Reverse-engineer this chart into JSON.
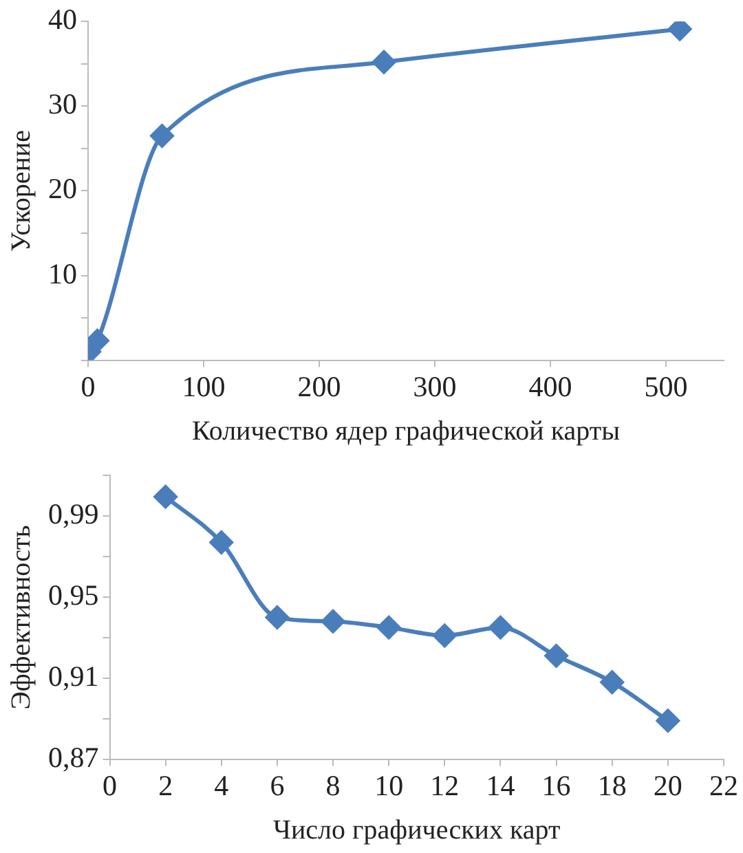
{
  "chart_data": [
    {
      "type": "line",
      "xlabel": "Количество ядер графической карты",
      "ylabel": "Ускорение",
      "marker": "diamond",
      "x": [
        1,
        8,
        64,
        256,
        512
      ],
      "series": [
        {
          "color": "#4a7ebb",
          "values": [
            1,
            2.3,
            26.5,
            35.2,
            39.1
          ]
        }
      ],
      "xlim": [
        0,
        550
      ],
      "xticks": [
        0,
        100,
        200,
        300,
        400,
        500
      ],
      "ylim": [
        0,
        40
      ],
      "yticks": [
        {
          "value": 0,
          "label": null
        },
        {
          "value": 5,
          "label": null
        },
        10,
        {
          "value": 15,
          "label": null
        },
        20,
        {
          "value": 25,
          "label": null
        },
        30,
        {
          "value": 35,
          "label": null
        },
        40
      ]
    },
    {
      "type": "line",
      "xlabel": "Число графических карт",
      "ylabel": "Эффективность",
      "marker": "diamond",
      "x": [
        2,
        4,
        6,
        8,
        10,
        12,
        14,
        16,
        18,
        20
      ],
      "series": [
        {
          "color": "#4a7ebb",
          "values": [
            0.9995,
            0.977,
            0.94,
            0.938,
            0.935,
            0.931,
            0.935,
            0.921,
            0.908,
            0.889
          ]
        }
      ],
      "xlim": [
        0,
        22
      ],
      "xticks": [
        0,
        2,
        4,
        6,
        8,
        10,
        12,
        14,
        16,
        18,
        20,
        22
      ],
      "ylim": [
        0.87,
        1.01
      ],
      "yticks": [
        {
          "value": 0.87,
          "label": "0,87"
        },
        {
          "value": 0.89,
          "label": null
        },
        {
          "value": 0.91,
          "label": "0,91"
        },
        {
          "value": 0.93,
          "label": null
        },
        {
          "value": 0.95,
          "label": "0,95"
        },
        {
          "value": 0.97,
          "label": null
        },
        {
          "value": 0.99,
          "label": "0,99"
        },
        {
          "value": 1.01,
          "label": null
        }
      ]
    }
  ]
}
